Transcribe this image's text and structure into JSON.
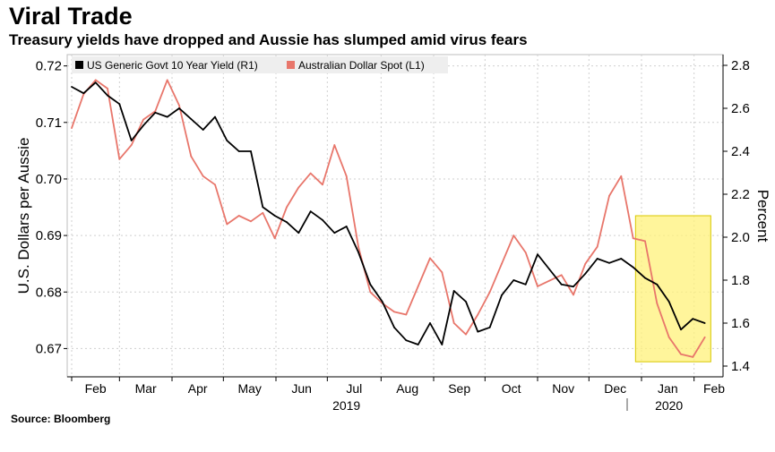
{
  "header": {
    "title": "Viral Trade",
    "subtitle": "Treasury yields have dropped and Aussie has slumped amid virus fears"
  },
  "footer": {
    "source": "Source: Bloomberg"
  },
  "colors": {
    "yield_line": "#000000",
    "aud_line": "#e8766b",
    "highlight": "#fff27a",
    "highlight_border": "#d9c800",
    "grid": "#cfcfcf",
    "plot_bg": "#ffffff"
  },
  "chart_data": {
    "type": "line",
    "title": "Viral Trade",
    "subtitle": "Treasury yields have dropped and Aussie has slumped amid virus fears",
    "x_unit": "weeks",
    "x_range": [
      0,
      54
    ],
    "months": [
      {
        "label": "Feb",
        "x": 0
      },
      {
        "label": "Mar",
        "x": 4
      },
      {
        "label": "Apr",
        "x": 8.4
      },
      {
        "label": "May",
        "x": 12.7
      },
      {
        "label": "Jun",
        "x": 17.1
      },
      {
        "label": "Jul",
        "x": 21.4
      },
      {
        "label": "Aug",
        "x": 25.9
      },
      {
        "label": "Sep",
        "x": 30.3
      },
      {
        "label": "Oct",
        "x": 34.6
      },
      {
        "label": "Nov",
        "x": 39
      },
      {
        "label": "Dec",
        "x": 43.3
      },
      {
        "label": "Jan",
        "x": 47.7
      },
      {
        "label": "Feb",
        "x": 52.1
      }
    ],
    "year_labels": [
      {
        "label": "2019",
        "x": 23
      },
      {
        "label": "2020",
        "x": 50
      }
    ],
    "year_divider_x": 46.5,
    "left_axis": {
      "label": "U.S. Dollars per Aussie",
      "ylim": [
        0.665,
        0.722
      ],
      "ticks": [
        0.67,
        0.68,
        0.69,
        0.7,
        0.71,
        0.72
      ],
      "tick_labels": [
        "0.67",
        "0.68",
        "0.69",
        "0.70",
        "0.71",
        "0.72"
      ]
    },
    "right_axis": {
      "label": "Percent",
      "ylim": [
        1.35,
        2.85
      ],
      "ticks": [
        1.4,
        1.6,
        1.8,
        2.0,
        2.2,
        2.4,
        2.6,
        2.8
      ],
      "tick_labels": [
        "1.4",
        "1.6",
        "1.8",
        "2.0",
        "2.2",
        "2.4",
        "2.6",
        "2.8"
      ]
    },
    "legend": {
      "placement": "top-left",
      "entries": [
        "US Generic Govt 10 Year Yield  (R1)",
        "Australian Dollar Spot  (L1)"
      ]
    },
    "highlight": {
      "x_from": 47.2,
      "x_to": 53.5,
      "y_from": 1.42,
      "y_to": 2.1,
      "axis": "right"
    },
    "series": [
      {
        "name": "US Generic Govt 10 Year Yield  (R1)",
        "axis": "right",
        "color": "#000000",
        "x": [
          0,
          1,
          2,
          3,
          4,
          5,
          6,
          7,
          8,
          9,
          10,
          11,
          12,
          13,
          14,
          15,
          16,
          17,
          18,
          19,
          20,
          21,
          22,
          23,
          24,
          25,
          26,
          27,
          28,
          29,
          30,
          31,
          32,
          33,
          34,
          35,
          36,
          37,
          38,
          39,
          40,
          41,
          42,
          43,
          44,
          45,
          46,
          47,
          48,
          49,
          50,
          51,
          52,
          53
        ],
        "values": [
          2.7,
          2.67,
          2.72,
          2.66,
          2.62,
          2.45,
          2.52,
          2.58,
          2.56,
          2.6,
          2.55,
          2.5,
          2.56,
          2.45,
          2.4,
          2.4,
          2.14,
          2.1,
          2.07,
          2.02,
          2.12,
          2.08,
          2.02,
          2.05,
          1.93,
          1.78,
          1.7,
          1.58,
          1.52,
          1.5,
          1.6,
          1.5,
          1.75,
          1.7,
          1.56,
          1.58,
          1.73,
          1.8,
          1.78,
          1.92,
          1.85,
          1.78,
          1.77,
          1.83,
          1.9,
          1.88,
          1.9,
          1.86,
          1.81,
          1.78,
          1.7,
          1.57,
          1.62,
          1.6
        ]
      },
      {
        "name": "Australian Dollar Spot  (L1)",
        "axis": "left",
        "color": "#e8766b",
        "x": [
          0,
          1,
          2,
          3,
          4,
          5,
          6,
          7,
          8,
          9,
          10,
          11,
          12,
          13,
          14,
          15,
          16,
          17,
          18,
          19,
          20,
          21,
          22,
          23,
          24,
          25,
          26,
          27,
          28,
          29,
          30,
          31,
          32,
          33,
          34,
          35,
          36,
          37,
          38,
          39,
          40,
          41,
          42,
          43,
          44,
          45,
          46,
          47,
          48,
          49,
          50,
          51,
          52,
          53
        ],
        "values": [
          0.709,
          0.715,
          0.7175,
          0.716,
          0.7035,
          0.706,
          0.7105,
          0.712,
          0.7175,
          0.713,
          0.704,
          0.7005,
          0.699,
          0.692,
          0.6935,
          0.6925,
          0.694,
          0.6895,
          0.695,
          0.6985,
          0.701,
          0.699,
          0.706,
          0.7005,
          0.688,
          0.68,
          0.678,
          0.6765,
          0.676,
          0.681,
          0.686,
          0.6835,
          0.6745,
          0.6725,
          0.676,
          0.68,
          0.685,
          0.69,
          0.687,
          0.681,
          0.682,
          0.683,
          0.6795,
          0.685,
          0.688,
          0.697,
          0.7005,
          0.6895,
          0.689,
          0.678,
          0.672,
          0.669,
          0.6685,
          0.672
        ]
      }
    ]
  }
}
